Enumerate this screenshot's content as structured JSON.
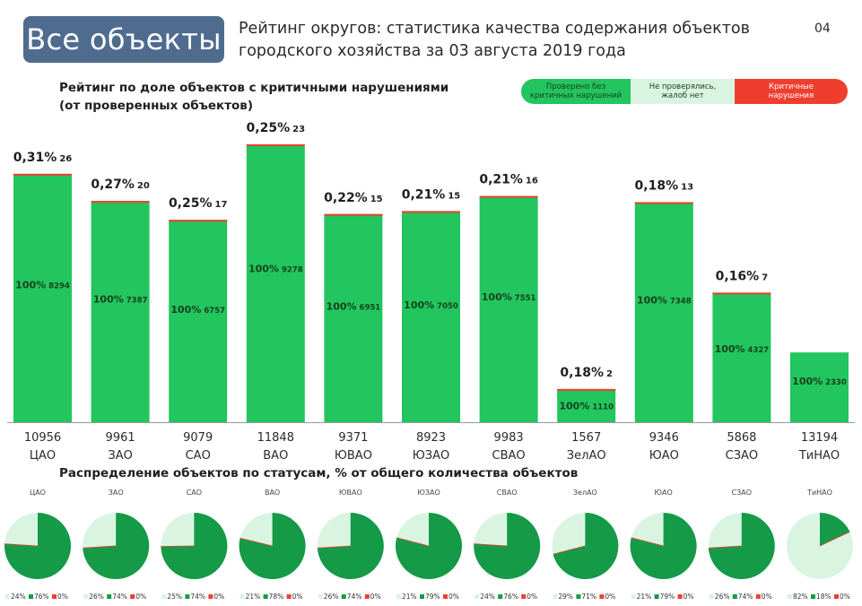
{
  "header": {
    "badge": "Все объекты",
    "title_line1": "Рейтинг округов: статистика качества содержания объектов",
    "title_line2": "городского хозяйства за 03 августа 2019 года",
    "page_number": "04"
  },
  "section1": {
    "title_line1": "Рейтинг по доле объектов с критичными нарушениями",
    "title_line2": "(от проверенных объектов)"
  },
  "legend": [
    {
      "label_line1": "Проверено без",
      "label_line2": "критичных нарушений",
      "color": "#22c55e",
      "text_color": "#1a3d22"
    },
    {
      "label_line1": "Не проверялись,",
      "label_line2": "жалоб нет",
      "color": "#d9f5e1",
      "text_color": "#1a3d22"
    },
    {
      "label_line1": "Критичные",
      "label_line2": "нарушения",
      "color": "#f03e2e",
      "text_color": "#ffffff"
    }
  ],
  "section2": {
    "title": "Распределение объектов по статусам, % от общего количества объектов"
  },
  "colors": {
    "bar": "#22c55e",
    "critical": "#f03e2e",
    "unchecked": "#d9f5e1",
    "pie_checked": "#159a48",
    "baseline": "#9a9a9a"
  },
  "chart_data": [
    {
      "type": "bar",
      "title": "Рейтинг по доле объектов с критичными нарушениями",
      "categories": [
        "ЦАО",
        "ЗАО",
        "САО",
        "ВАО",
        "ЮВАО",
        "ЮЗАО",
        "СВАО",
        "ЗелАО",
        "ЮАО",
        "СЗАО",
        "ТиНАО"
      ],
      "totals": [
        "10956",
        "9961",
        "9079",
        "11848",
        "9371",
        "8923",
        "9983",
        "1567",
        "9346",
        "5868",
        "13194"
      ],
      "critical_percent": [
        "0,31%",
        "0,27%",
        "0,25%",
        "0,25%",
        "0,22%",
        "0,21%",
        "0,21%",
        "0,18%",
        "0,18%",
        "0,16%",
        ""
      ],
      "critical_count": [
        "26",
        "20",
        "17",
        "23",
        "15",
        "15",
        "16",
        "2",
        "13",
        "7",
        ""
      ],
      "checked_percent": [
        "100%",
        "100%",
        "100%",
        "100%",
        "100%",
        "100%",
        "100%",
        "100%",
        "100%",
        "100%",
        "100%"
      ],
      "checked_count": [
        "8294",
        "7387",
        "6757",
        "9278",
        "6951",
        "7050",
        "7551",
        "1110",
        "7348",
        "4327",
        "2330"
      ],
      "values": [
        8294,
        7387,
        6757,
        9278,
        6951,
        7050,
        7551,
        1110,
        7348,
        4327,
        2330
      ],
      "ylim": [
        0,
        9278
      ],
      "grid": false,
      "legend_position": "top-right"
    },
    {
      "type": "pie",
      "title": "Распределение объектов по статусам, % от общего количества объектов",
      "categories": [
        "ЦАО",
        "ЗАО",
        "САО",
        "ВАО",
        "ЮВАО",
        "ЮЗАО",
        "СВАО",
        "ЗелАО",
        "ЮАО",
        "СЗАО",
        "ТиНАО"
      ],
      "series": [
        {
          "name": "Не проверялись, жалоб нет",
          "values": [
            24,
            26,
            25,
            21,
            26,
            21,
            24,
            29,
            21,
            26,
            82
          ],
          "labels": [
            "24%",
            "26%",
            "25%",
            "21%",
            "26%",
            "21%",
            "24%",
            "29%",
            "21%",
            "26%",
            "82%"
          ]
        },
        {
          "name": "Проверено без критичных нарушений",
          "values": [
            76,
            74,
            74,
            78,
            74,
            79,
            76,
            71,
            79,
            74,
            18
          ],
          "labels": [
            "76%",
            "74%",
            "74%",
            "78%",
            "74%",
            "79%",
            "76%",
            "71%",
            "79%",
            "74%",
            "18%"
          ]
        },
        {
          "name": "Критичные нарушения",
          "values": [
            0,
            0,
            0,
            0,
            0,
            0,
            0,
            0,
            0,
            0,
            0
          ],
          "labels": [
            "0%",
            "0%",
            "0%",
            "0%",
            "0%",
            "0%",
            "0%",
            "0%",
            "0%",
            "0%",
            "0%"
          ]
        }
      ]
    }
  ]
}
